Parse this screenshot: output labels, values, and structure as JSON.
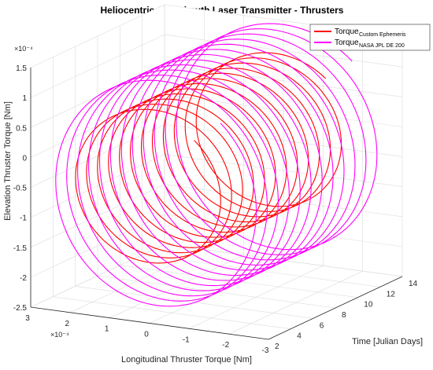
{
  "chart_data": {
    "type": "line",
    "title": "Heliocentric Alt-Azimuth Laser Transmitter - Thrusters",
    "xlabel": "Longitudinal Thruster Torque [Nm]",
    "ylabel": "Elevation Thruster Torque [Nm]",
    "zlabel": "Time [Julian Days]",
    "x_exponent_label": "×10⁻⁴",
    "y_exponent_label": "×10⁻⁴",
    "xlim": [
      3,
      -3
    ],
    "ylim": [
      -2.5,
      1.5
    ],
    "zlim": [
      2,
      14
    ],
    "x_ticks": [
      "3",
      "2",
      "1",
      "0",
      "-1",
      "-2",
      "-3"
    ],
    "y_ticks": [
      "1.5",
      "1",
      "0.5",
      "0",
      "-0.5",
      "-1",
      "-1.5",
      "-2",
      "-2.5"
    ],
    "z_ticks": [
      "2",
      "4",
      "6",
      "8",
      "10",
      "12",
      "14"
    ],
    "grid": true,
    "legend_position": "top-right",
    "series": [
      {
        "name": "Torque",
        "subscript": "Custom Ephemeris",
        "color": "#ff0000",
        "center_x": 0.2,
        "center_y": -0.3,
        "radius_x": 1.9,
        "radius_y": 1.25,
        "t_start": 2.2,
        "t_end": 14,
        "turns": 12
      },
      {
        "name": "Torque",
        "subscript": "NASA JPL DE 200",
        "color": "#ff00ff",
        "center_x": 0.0,
        "center_y": -0.4,
        "radius_x": 2.6,
        "radius_y": 1.85,
        "t_start": 2.2,
        "t_end": 14,
        "turns": 12
      }
    ]
  }
}
